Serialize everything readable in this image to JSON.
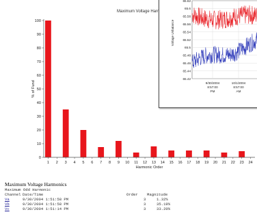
{
  "main_chart": {
    "title": "Maximum Voltage Harmonics",
    "chart_data": {
      "type": "bar",
      "title": "Maximum Voltage Harmonics",
      "xlabel": "Harmonic Order",
      "ylabel": "% of Fund",
      "ylim": [
        0,
        100
      ],
      "yticks": [
        0,
        10,
        20,
        30,
        40,
        50,
        60,
        70,
        80,
        90,
        100
      ],
      "grid": false,
      "bar_color": "#e8161c",
      "categories": [
        "1",
        "2",
        "3",
        "4",
        "5",
        "6",
        "7",
        "8",
        "9",
        "10",
        "11",
        "12",
        "13",
        "14",
        "15",
        "16",
        "17",
        "18",
        "19",
        "20",
        "21",
        "22",
        "23",
        "24"
      ],
      "values": [
        100,
        0,
        35,
        0,
        20,
        0,
        7.5,
        0,
        12,
        0,
        3.5,
        0,
        8,
        0,
        5,
        0,
        5,
        0,
        5,
        0,
        3.5,
        0,
        4.5,
        0
      ]
    }
  },
  "inset_chart": {
    "chart_data": {
      "type": "line",
      "ylabel": "Voltage Unbalance",
      "ylim": [
        65.42,
        65.62
      ],
      "yticks": [
        "65.62",
        "65.6",
        "65.58",
        "65.56",
        "65.54",
        "65.52",
        "65.5",
        "65.48",
        "65.46",
        "65.44",
        "65.42"
      ],
      "xticks": [
        {
          "date": "9/30/2004",
          "time": "8:57:00",
          "ampm": "PM"
        },
        {
          "date": "10/1/2004",
          "time": "8:57:00",
          "ampm": "AM"
        }
      ],
      "series_colors": [
        "#e8161c",
        "#2a36b8"
      ]
    }
  },
  "report": {
    "title": "Maximum Voltage Harmonics",
    "subtitle": "Maximum Odd Harmonic",
    "headers": {
      "channel": "Channel",
      "datetime": "Date/Time",
      "order": "Order",
      "magnitude": "Magnitude"
    },
    "rows": [
      {
        "channel": "Va",
        "datetime": "9/30/2004 1:51:58 PM",
        "order": "3",
        "magnitude": "1.32%"
      },
      {
        "channel": "Vb",
        "datetime": "9/30/2004 1:51:58 PM",
        "order": "3",
        "magnitude": "35.19%"
      },
      {
        "channel": "Vc",
        "datetime": "9/30/2004 1:51:14 PM",
        "order": "3",
        "magnitude": "33.20%"
      }
    ]
  }
}
